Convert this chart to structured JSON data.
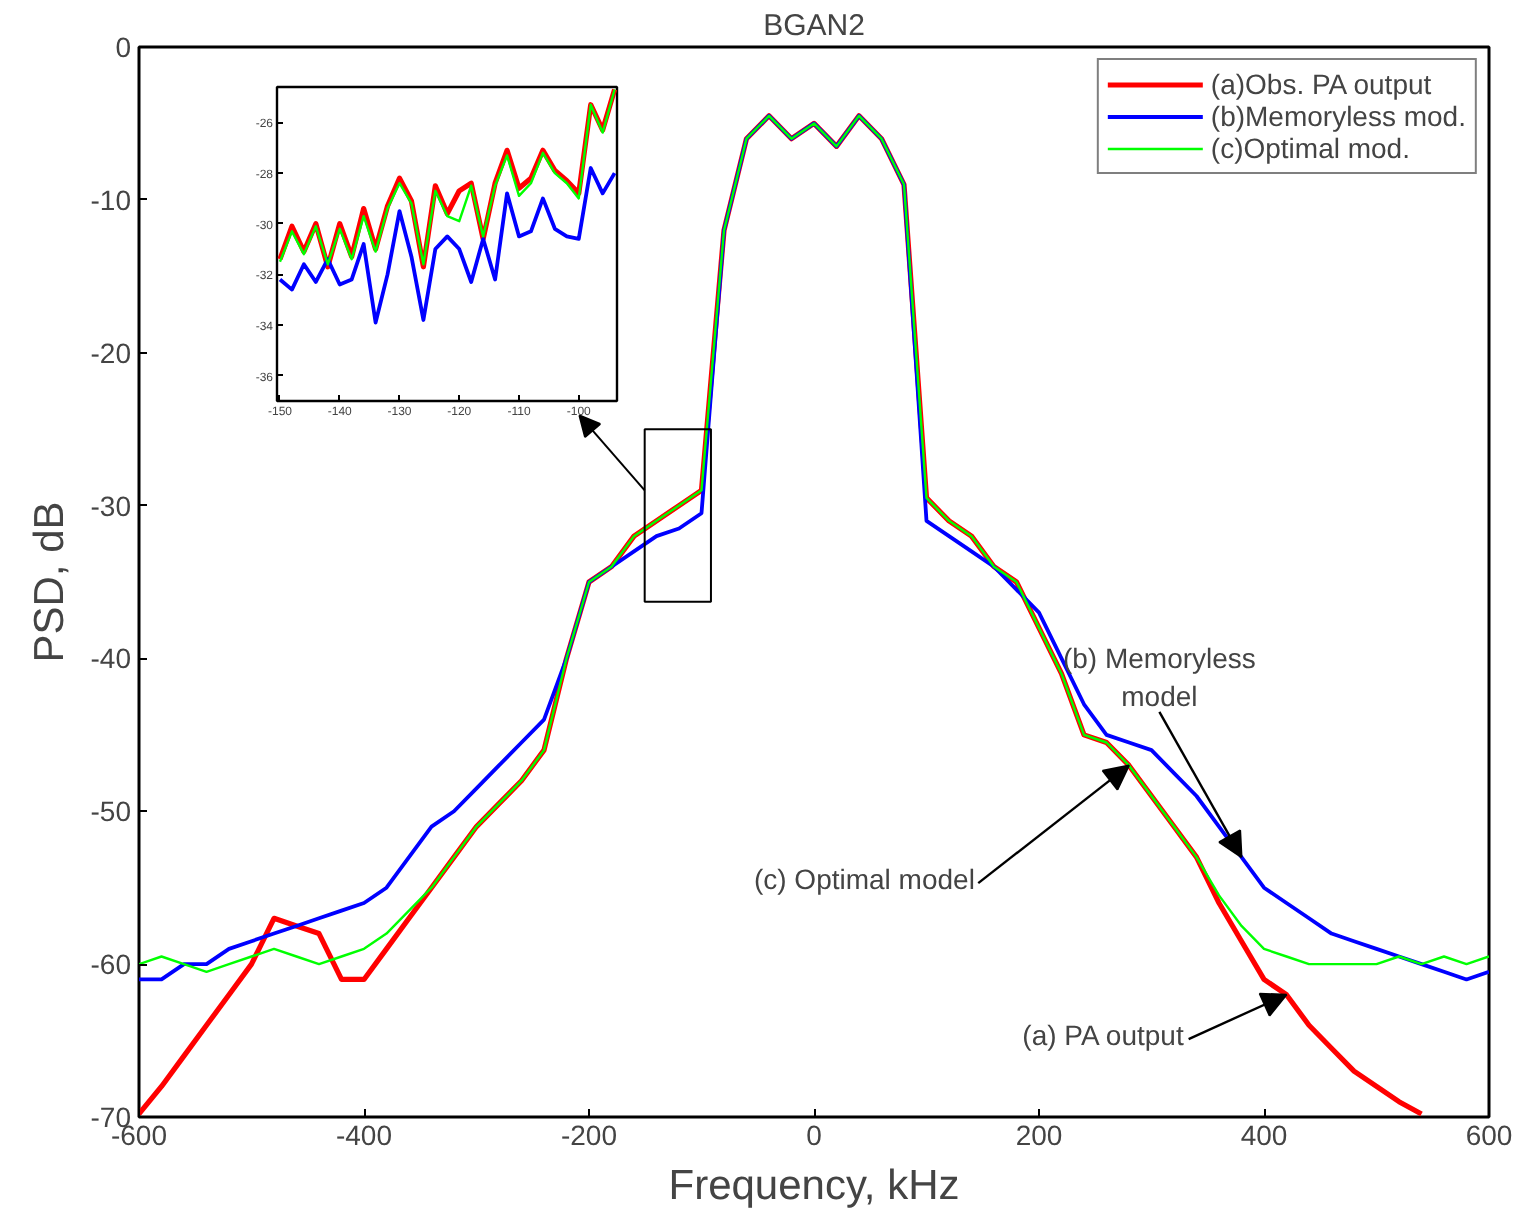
{
  "chart_data": [
    {
      "type": "line",
      "title": "BGAN2",
      "xlabel": "Frequency, kHz",
      "ylabel": "PSD, dB",
      "xlim": [
        -600,
        600
      ],
      "ylim": [
        -70,
        0
      ],
      "xticks": [
        -600,
        -400,
        -200,
        0,
        200,
        400,
        600
      ],
      "yticks": [
        -70,
        -60,
        -50,
        -40,
        -30,
        -20,
        -10,
        0
      ],
      "grid": false,
      "legend": "top right",
      "marker": "none",
      "line_style": "solid",
      "x": [
        -600,
        -580,
        -560,
        -540,
        -520,
        -500,
        -480,
        -460,
        -440,
        -420,
        -400,
        -380,
        -360,
        -340,
        -320,
        -300,
        -280,
        -260,
        -240,
        -220,
        -200,
        -180,
        -160,
        -140,
        -120,
        -100,
        -80,
        -60,
        -40,
        -20,
        0,
        20,
        40,
        60,
        80,
        100,
        120,
        140,
        160,
        180,
        200,
        220,
        240,
        260,
        280,
        300,
        320,
        340,
        360,
        380,
        400,
        420,
        440,
        460,
        480,
        500,
        520,
        540,
        560,
        580,
        600
      ],
      "series": [
        {
          "name": "(a)Obs. PA output",
          "color": "#ff0000",
          "values": [
            -69.8,
            -68,
            -66,
            -64,
            -62,
            -60,
            -57,
            -57.5,
            -58,
            -61,
            -61,
            -59,
            -57,
            -55,
            -53,
            -51,
            -49.5,
            -48,
            -46,
            -40,
            -35,
            -34,
            -32,
            -31,
            -30,
            -29,
            -12,
            -6,
            -4.5,
            -6,
            -5,
            -6.5,
            -4.5,
            -6,
            -9,
            -29.5,
            -31,
            -32,
            -34,
            -35,
            -38,
            -41,
            -45,
            -45.5,
            -47,
            -49,
            -51,
            -53,
            -56,
            -58.5,
            -61,
            -62,
            -64,
            -65.5,
            -67,
            -68,
            -69,
            -69.8,
            null,
            null,
            null
          ]
        },
        {
          "name": "(b)Memoryless mod.",
          "color": "#0000ff",
          "values": [
            -61,
            -61,
            -60,
            -60,
            -59,
            -58.5,
            -58,
            -57.5,
            -57,
            -56.5,
            -56,
            -55,
            -53,
            -51,
            -50,
            -48.5,
            -47,
            -45.5,
            -44,
            -40,
            -35,
            -34,
            -33,
            -32,
            -31.5,
            -30.5,
            -12,
            -6,
            -4.5,
            -6,
            -5,
            -6.5,
            -4.5,
            -6,
            -9,
            -31,
            -32,
            -33,
            -34,
            -35.5,
            -37,
            -40,
            -43,
            -45,
            -45.5,
            -46,
            -47.5,
            -49,
            -51,
            -53,
            -55,
            -56,
            -57,
            -58,
            -58.5,
            -59,
            -59.5,
            -60,
            -60.5,
            -61,
            -60.5
          ]
        },
        {
          "name": "(c)Optimal mod.",
          "color": "#00ff00",
          "values": [
            -60,
            -59.5,
            -60,
            -60.5,
            -60,
            -59.5,
            -59,
            -59.5,
            -60,
            -59.5,
            -59,
            -58,
            -56.5,
            -55,
            -53,
            -51,
            -49.5,
            -48,
            -46,
            -40,
            -35,
            -34,
            -32,
            -31,
            -30,
            -29,
            -12,
            -6,
            -4.5,
            -6,
            -5,
            -6.5,
            -4.5,
            -6,
            -9,
            -29.5,
            -31,
            -32,
            -34,
            -35,
            -38,
            -41,
            -45,
            -45.5,
            -47,
            -49,
            -51,
            -53,
            -55.5,
            -57.5,
            -59,
            -59.5,
            -60,
            -60,
            -60,
            -60,
            -59.5,
            -60,
            -59.5,
            -60,
            -59.5
          ]
        }
      ],
      "annotations": [
        {
          "text": "(b) Memoryless\nmodel",
          "x": 380,
          "y": -53
        },
        {
          "text": "(c) Optimal model",
          "x": 280,
          "y": -47
        },
        {
          "text": "(a) PA output",
          "x": 420,
          "y": -62
        }
      ]
    },
    {
      "type": "line",
      "xlim": [
        -150.5,
        -93.6
      ],
      "ylim": [
        -37,
        -24.6
      ],
      "xticks": [
        -150,
        -140,
        -130,
        -120,
        -110,
        -100
      ],
      "yticks": [
        -36,
        -34,
        -32,
        -30,
        -28,
        -26
      ],
      "grid": false,
      "marker": "none",
      "line_style": "solid",
      "x": [
        -150,
        -148,
        -146,
        -144,
        -142,
        -140,
        -138,
        -136,
        -134,
        -132,
        -130,
        -128,
        -126,
        -124,
        -122,
        -120,
        -118,
        -116,
        -114,
        -112,
        -110,
        -108,
        -106,
        -104,
        -102,
        -100,
        -98,
        -96,
        -94
      ],
      "series": [
        {
          "color": "#ff0000",
          "values": [
            -31.4,
            -30.1,
            -31.1,
            -30.0,
            -31.7,
            -30.0,
            -31.3,
            -29.4,
            -31.0,
            -29.3,
            -28.2,
            -29.1,
            -31.7,
            -28.5,
            -29.6,
            -28.7,
            -28.4,
            -30.6,
            -28.4,
            -27.1,
            -28.6,
            -28.2,
            -27.1,
            -27.9,
            -28.3,
            -28.8,
            -25.3,
            -26.3,
            -24.7
          ]
        },
        {
          "color": "#0000ff",
          "values": [
            -32.2,
            -32.6,
            -31.6,
            -32.3,
            -31.4,
            -32.4,
            -32.2,
            -30.8,
            -33.9,
            -32.0,
            -29.5,
            -31.3,
            -33.8,
            -31.0,
            -30.5,
            -31.0,
            -32.3,
            -30.6,
            -32.2,
            -28.8,
            -30.5,
            -30.3,
            -29.0,
            -30.2,
            -30.5,
            -30.6,
            -27.8,
            -28.8,
            -28.0
          ]
        },
        {
          "color": "#00ff00",
          "values": [
            -31.5,
            -30.3,
            -31.2,
            -30.1,
            -31.6,
            -30.2,
            -31.4,
            -29.7,
            -31.1,
            -29.4,
            -28.4,
            -29.2,
            -31.6,
            -28.7,
            -29.7,
            -29.9,
            -28.5,
            -30.5,
            -28.5,
            -27.3,
            -28.9,
            -28.4,
            -27.2,
            -28.0,
            -28.4,
            -29.0,
            -25.3,
            -26.4,
            -24.7
          ]
        }
      ]
    }
  ]
}
